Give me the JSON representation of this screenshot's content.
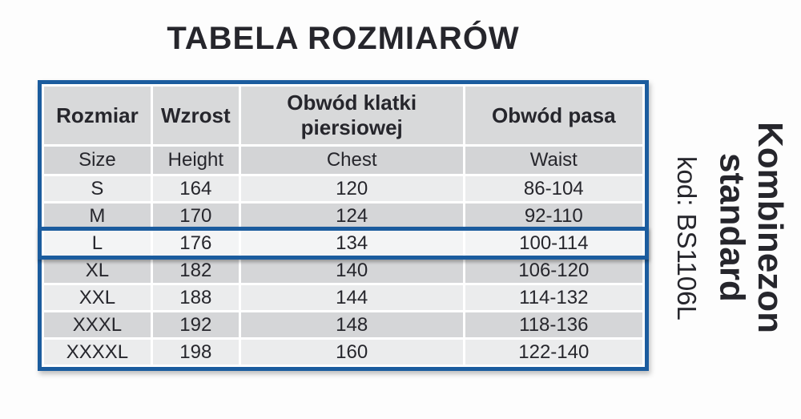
{
  "title": "TABELA ROZMIARÓW",
  "colors": {
    "accent_blue": "#1b5c9e",
    "header_gray": "#d8d9da",
    "subheader_gray": "#d3d4d6",
    "row_gray": "#d5d6d8",
    "row_light": "#ebeced",
    "selected_row_bg": "#f3f4f5",
    "text": "#26262c"
  },
  "table": {
    "header": {
      "cells": [
        "Rozmiar",
        "Wzrost",
        "Obwód klatki piersiowej",
        "Obwód pasa"
      ]
    },
    "subheader": {
      "cells": [
        "Size",
        "Height",
        "Chest",
        "Waist"
      ]
    },
    "selected_size": "L",
    "rows": [
      {
        "size": "S",
        "height": "164",
        "chest": "120",
        "waist": "86-104",
        "highlighted": false
      },
      {
        "size": "M",
        "height": "170",
        "chest": "124",
        "waist": "92-110",
        "highlighted": false
      },
      {
        "size": "L",
        "height": "176",
        "chest": "134",
        "waist": "100-114",
        "highlighted": true
      },
      {
        "size": "XL",
        "height": "182",
        "chest": "140",
        "waist": "106-120",
        "highlighted": false
      },
      {
        "size": "XXL",
        "height": "188",
        "chest": "144",
        "waist": "114-132",
        "highlighted": false
      },
      {
        "size": "XXXL",
        "height": "192",
        "chest": "148",
        "waist": "118-136",
        "highlighted": false
      },
      {
        "size": "XXXXL",
        "height": "198",
        "chest": "160",
        "waist": "122-140",
        "highlighted": false
      }
    ]
  },
  "side_label": {
    "product_name_line1": "Kombinezon",
    "product_name_line2": "standard",
    "product_code": "kod: BS1106L"
  }
}
